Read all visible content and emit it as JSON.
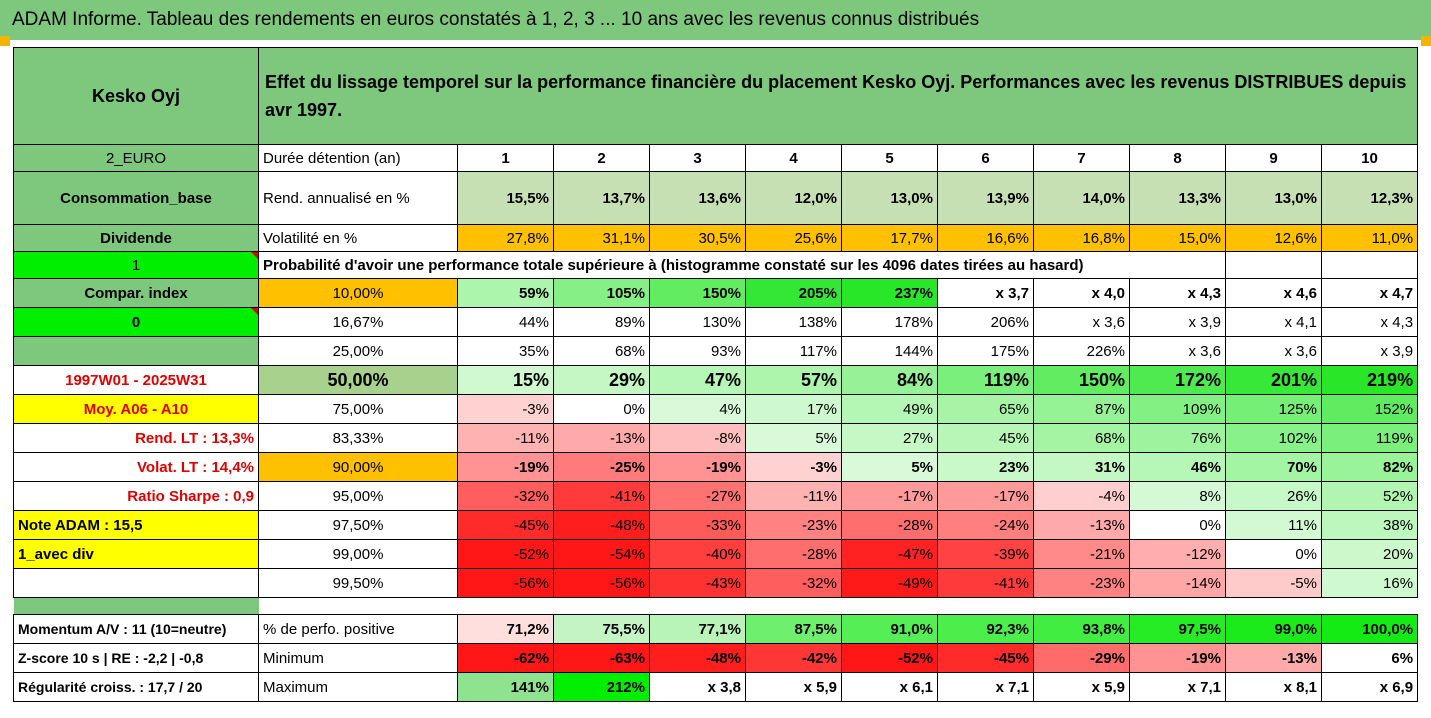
{
  "title": "ADAM Informe. Tableau des rendements en euros constatés à 1, 2, 3 ... 10 ans avec les revenus connus distribués",
  "left": {
    "company": "Kesko Oyj",
    "currency": "2_EURO",
    "sector": "Consommation_base",
    "category": "Dividende",
    "flag_value": "1",
    "compar_index": "Compar. index",
    "compar_value": "0",
    "period": "1997W01 - 2025W31",
    "moy": "Moy. A06 - A10",
    "rend_lt": "Rend. LT :   13,3%",
    "volat_lt": "Volat. LT :   14,4%",
    "sharpe": "Ratio Sharpe :    0,9",
    "note": "Note ADAM : 15,5",
    "avec_div": "1_avec div",
    "momentum": "Momentum A/V : 11 (10=neutre)",
    "zscore": "Z-score 10 s  | RE : -2,2 | -0,8",
    "regularite": "Régularité croiss. : 17,7 / 20"
  },
  "header_text": "Effet du lissage temporel sur la performance financière du placement Kesko Oyj. Performances avec les revenus DISTRIBUES depuis avr 1997.",
  "duration_label": "Durée détention (an)",
  "years": [
    "1",
    "2",
    "3",
    "4",
    "5",
    "6",
    "7",
    "8",
    "9",
    "10"
  ],
  "rend": {
    "label": "Rend. annualisé en %",
    "values": [
      "15,5%",
      "13,7%",
      "13,6%",
      "12,0%",
      "13,0%",
      "13,9%",
      "14,0%",
      "13,3%",
      "13,0%",
      "12,3%"
    ]
  },
  "vol": {
    "label": "Volatilité en %",
    "values": [
      "27,8%",
      "31,1%",
      "30,5%",
      "25,6%",
      "17,7%",
      "16,6%",
      "16,8%",
      "15,0%",
      "12,6%",
      "11,0%"
    ]
  },
  "prob_label": "Probabilité d'avoir une performance totale supérieure à (histogramme constaté sur les 4096 dates tirées au hasard)",
  "quantile_rows": [
    {
      "label": "10,00%",
      "values": [
        "59%",
        "105%",
        "150%",
        "205%",
        "237%",
        "x 3,7",
        "x 4,0",
        "x 4,3",
        "x 4,6",
        "x 4,7"
      ]
    },
    {
      "label": "16,67%",
      "values": [
        "44%",
        "89%",
        "130%",
        "138%",
        "178%",
        "206%",
        "x 3,6",
        "x 3,9",
        "x 4,1",
        "x 4,3"
      ]
    },
    {
      "label": "25,00%",
      "values": [
        "35%",
        "68%",
        "93%",
        "117%",
        "144%",
        "175%",
        "226%",
        "x 3,6",
        "x 3,6",
        "x 3,9"
      ]
    },
    {
      "label": "50,00%",
      "values": [
        "15%",
        "29%",
        "47%",
        "57%",
        "84%",
        "119%",
        "150%",
        "172%",
        "201%",
        "219%"
      ]
    },
    {
      "label": "75,00%",
      "values": [
        "-3%",
        "0%",
        "4%",
        "17%",
        "49%",
        "65%",
        "87%",
        "109%",
        "125%",
        "152%"
      ]
    },
    {
      "label": "83,33%",
      "values": [
        "-11%",
        "-13%",
        "-8%",
        "5%",
        "27%",
        "45%",
        "68%",
        "76%",
        "102%",
        "119%"
      ]
    },
    {
      "label": "90,00%",
      "values": [
        "-19%",
        "-25%",
        "-19%",
        "-3%",
        "5%",
        "23%",
        "31%",
        "46%",
        "70%",
        "82%"
      ]
    },
    {
      "label": "95,00%",
      "values": [
        "-32%",
        "-41%",
        "-27%",
        "-11%",
        "-17%",
        "-17%",
        "-4%",
        "8%",
        "26%",
        "52%"
      ]
    },
    {
      "label": "97,50%",
      "values": [
        "-45%",
        "-48%",
        "-33%",
        "-23%",
        "-28%",
        "-24%",
        "-13%",
        "0%",
        "11%",
        "38%"
      ]
    },
    {
      "label": "99,00%",
      "values": [
        "-52%",
        "-54%",
        "-40%",
        "-28%",
        "-47%",
        "-39%",
        "-21%",
        "-12%",
        "0%",
        "20%"
      ]
    },
    {
      "label": "99,50%",
      "values": [
        "-56%",
        "-56%",
        "-43%",
        "-32%",
        "-49%",
        "-41%",
        "-23%",
        "-14%",
        "-5%",
        "16%"
      ]
    }
  ],
  "bottom_rows": [
    {
      "label": "% de perfo. positive",
      "values": [
        "71,2%",
        "75,5%",
        "77,1%",
        "87,5%",
        "91,0%",
        "92,3%",
        "93,8%",
        "97,5%",
        "99,0%",
        "100,0%"
      ]
    },
    {
      "label": "Minimum",
      "values": [
        "-62%",
        "-63%",
        "-48%",
        "-42%",
        "-52%",
        "-45%",
        "-29%",
        "-19%",
        "-13%",
        "6%"
      ]
    },
    {
      "label": "Maximum",
      "values": [
        "141%",
        "212%",
        "x 3,8",
        "x 5,9",
        "x 6,1",
        "x 7,1",
        "x 5,9",
        "x 7,1",
        "x 8,1",
        "x 6,9"
      ]
    }
  ],
  "colors": {
    "title_bg": "#7ec87e",
    "bright_green": "#00ee00",
    "yellow": "#ffff00",
    "orange": "#ffc000",
    "olive": "#a9d18e",
    "red_text": "#e00000",
    "pale_green_rend": "#c6e0b4",
    "red_strong": "#ff1a1a",
    "red_pale": "#ffdede"
  }
}
